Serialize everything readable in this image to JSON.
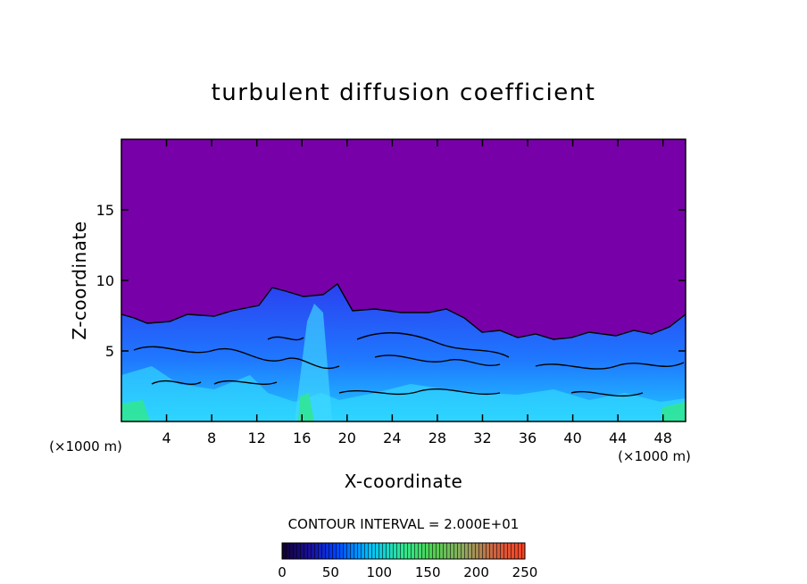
{
  "chart_data": {
    "type": "heatmap",
    "title": "turbulent diffusion coefficient",
    "xlabel": "X-coordinate",
    "ylabel": "Z-coordinate",
    "x_unit": "(×1000 m)",
    "x_unit_bottom": "(×1000 m)",
    "xlim": [
      0,
      50
    ],
    "ylim": [
      0,
      20
    ],
    "x_ticks": [
      "4",
      "8",
      "12",
      "16",
      "20",
      "24",
      "28",
      "32",
      "36",
      "40",
      "44",
      "48"
    ],
    "y_ticks": [
      "5",
      "10",
      "15"
    ],
    "contour_interval_text": "CONTOUR INTERVAL = 2.000E+01",
    "colorbar": {
      "ticks": [
        "0",
        "50",
        "100",
        "150",
        "200",
        "250"
      ],
      "range": [
        0,
        250
      ],
      "colors": [
        "#1a0040",
        "#0020ff",
        "#00ffff",
        "#00ff40",
        "#80c060",
        "#ff4020"
      ]
    },
    "background_color": "#7800a8"
  }
}
